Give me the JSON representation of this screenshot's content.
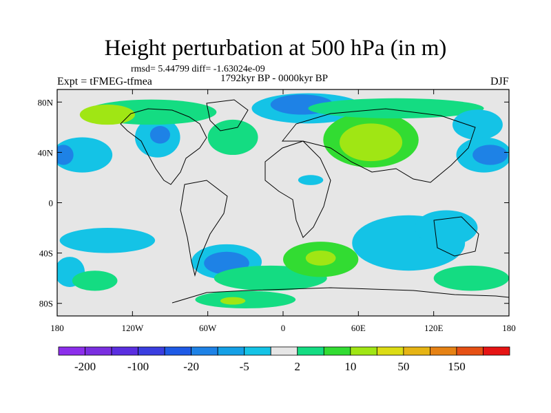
{
  "title": "Height perturbation at 500 hPa (in m)",
  "stats": "rmsd= 5.44799  diff= -1.63024e-09",
  "period": "1792kyr BP - 0000kyr BP",
  "experiment": "Expt = tFMEG-tfmea",
  "season": "DJF",
  "axes": {
    "y_ticks": [
      {
        "label": "80N",
        "lat": 80
      },
      {
        "label": "40N",
        "lat": 40
      },
      {
        "label": "0",
        "lat": 0
      },
      {
        "label": "40S",
        "lat": -40
      },
      {
        "label": "80S",
        "lat": -80
      }
    ],
    "x_ticks": [
      {
        "label": "180",
        "lon": -180
      },
      {
        "label": "120W",
        "lon": -120
      },
      {
        "label": "60W",
        "lon": -60
      },
      {
        "label": "0",
        "lon": 0
      },
      {
        "label": "60E",
        "lon": 60
      },
      {
        "label": "120E",
        "lon": 120
      },
      {
        "label": "180",
        "lon": 180
      }
    ],
    "lon_range": [
      -180,
      180
    ],
    "lat_range": [
      -90,
      90
    ]
  },
  "colorbar": {
    "colors": [
      "#8c2eeb",
      "#7a2ee0",
      "#5a2ee0",
      "#3a3ee0",
      "#1e5ae6",
      "#1e82e6",
      "#14a0e6",
      "#14c3e6",
      "#e6e6e6",
      "#14dc82",
      "#32dc32",
      "#a0e614",
      "#dcdc14",
      "#e6b414",
      "#e68214",
      "#e65014",
      "#e61414"
    ],
    "labels": [
      {
        "text": "-200",
        "index": 1
      },
      {
        "text": "-100",
        "index": 3
      },
      {
        "text": "-20",
        "index": 5
      },
      {
        "text": "-5",
        "index": 7
      },
      {
        "text": "2",
        "index": 9
      },
      {
        "text": "10",
        "index": 11
      },
      {
        "text": "50",
        "index": 13
      },
      {
        "text": "150",
        "index": 15
      }
    ]
  },
  "regions": [
    {
      "name": "n-pacific-low",
      "fill": "#14c3e6",
      "lon": -160,
      "lat": 38,
      "rx": 24,
      "ry": 14
    },
    {
      "name": "n-pacific-core",
      "fill": "#1e82e6",
      "lon": -175,
      "lat": 38,
      "rx": 8,
      "ry": 8
    },
    {
      "name": "n-america-low",
      "fill": "#14c3e6",
      "lon": -100,
      "lat": 52,
      "rx": 18,
      "ry": 16
    },
    {
      "name": "n-america-core",
      "fill": "#1e82e6",
      "lon": -98,
      "lat": 54,
      "rx": 8,
      "ry": 7
    },
    {
      "name": "arctic-greenland-band",
      "fill": "#14dc82",
      "lon": -105,
      "lat": 72,
      "rx": 52,
      "ry": 10
    },
    {
      "name": "greenland-high",
      "fill": "#a0e614",
      "lon": -140,
      "lat": 70,
      "rx": 22,
      "ry": 8
    },
    {
      "name": "n-atlantic-band",
      "fill": "#14dc82",
      "lon": -40,
      "lat": 52,
      "rx": 20,
      "ry": 14
    },
    {
      "name": "eurasia-low",
      "fill": "#14c3e6",
      "lon": 20,
      "lat": 75,
      "rx": 45,
      "ry": 12
    },
    {
      "name": "eurasia-core",
      "fill": "#1e82e6",
      "lon": 15,
      "lat": 78,
      "rx": 25,
      "ry": 8
    },
    {
      "name": "asia-high",
      "fill": "#32dc32",
      "lon": 70,
      "lat": 50,
      "rx": 38,
      "ry": 22
    },
    {
      "name": "asia-high-core",
      "fill": "#a0e614",
      "lon": 70,
      "lat": 48,
      "rx": 25,
      "ry": 15
    },
    {
      "name": "mid-arctic-band",
      "fill": "#14dc82",
      "lon": 90,
      "lat": 75,
      "rx": 70,
      "ry": 8
    },
    {
      "name": "far-east-band",
      "fill": "#14c3e6",
      "lon": 155,
      "lat": 62,
      "rx": 20,
      "ry": 12
    },
    {
      "name": "w-pacific-low",
      "fill": "#14c3e6",
      "lon": 160,
      "lat": 38,
      "rx": 22,
      "ry": 14
    },
    {
      "name": "w-pacific-core",
      "fill": "#1e82e6",
      "lon": 165,
      "lat": 38,
      "rx": 14,
      "ry": 8
    },
    {
      "name": "africa-low",
      "fill": "#14c3e6",
      "lon": 22,
      "lat": 18,
      "rx": 10,
      "ry": 4
    },
    {
      "name": "s-pacific-band",
      "fill": "#14c3e6",
      "lon": -140,
      "lat": -30,
      "rx": 38,
      "ry": 10
    },
    {
      "name": "s-pacific-west",
      "fill": "#14c3e6",
      "lon": -170,
      "lat": -55,
      "rx": 12,
      "ry": 12
    },
    {
      "name": "s-atlantic-low",
      "fill": "#14c3e6",
      "lon": -45,
      "lat": -47,
      "rx": 28,
      "ry": 14
    },
    {
      "name": "s-atlantic-core",
      "fill": "#1e82e6",
      "lon": -45,
      "lat": -48,
      "rx": 18,
      "ry": 9
    },
    {
      "name": "s-green-band",
      "fill": "#14dc82",
      "lon": -10,
      "lat": -60,
      "rx": 45,
      "ry": 10
    },
    {
      "name": "s-africa-high",
      "fill": "#32dc32",
      "lon": 30,
      "lat": -45,
      "rx": 30,
      "ry": 14
    },
    {
      "name": "s-africa-core",
      "fill": "#a0e614",
      "lon": 30,
      "lat": -44,
      "rx": 12,
      "ry": 6
    },
    {
      "name": "indian-ocean-low",
      "fill": "#14c3e6",
      "lon": 100,
      "lat": -32,
      "rx": 45,
      "ry": 22
    },
    {
      "name": "australia-low",
      "fill": "#14c3e6",
      "lon": 130,
      "lat": -20,
      "rx": 25,
      "ry": 14
    },
    {
      "name": "s-ocean-east",
      "fill": "#14dc82",
      "lon": 150,
      "lat": -60,
      "rx": 30,
      "ry": 10
    },
    {
      "name": "antarctic-green",
      "fill": "#14dc82",
      "lon": -30,
      "lat": -77,
      "rx": 40,
      "ry": 7
    },
    {
      "name": "antarctic-core",
      "fill": "#a0e614",
      "lon": -40,
      "lat": -78,
      "rx": 10,
      "ry": 3
    },
    {
      "name": "s-pacific-east-green",
      "fill": "#14dc82",
      "lon": -150,
      "lat": -62,
      "rx": 18,
      "ry": 8
    }
  ]
}
